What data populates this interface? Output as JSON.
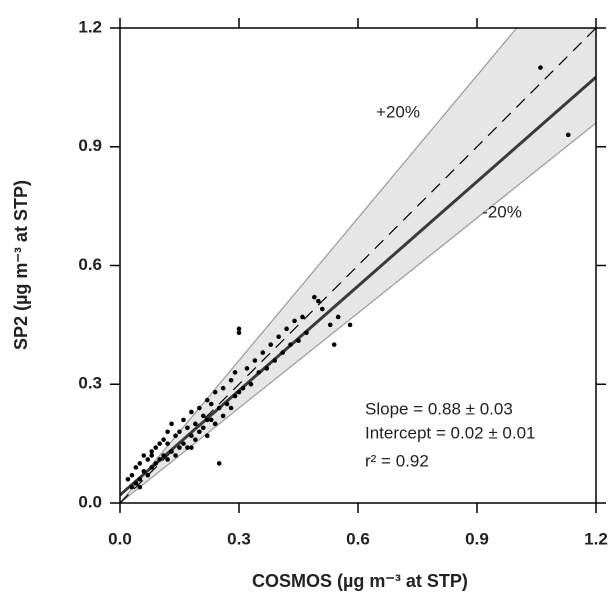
{
  "chart_data": {
    "type": "scatter",
    "x_label": "COSMOS (µg m⁻³ at STP)",
    "y_label": "SP2 (µg m⁻³ at STP)",
    "xlim": [
      0,
      1.2
    ],
    "ylim": [
      0,
      1.2
    ],
    "xticks": [
      {
        "value": 0,
        "label": "0.0"
      },
      0.3,
      0.6,
      0.9,
      1.2
    ],
    "yticks": [
      {
        "value": 0,
        "label": "0.0"
      },
      0.3,
      0.6,
      0.9,
      1.2
    ],
    "color": "#000000",
    "envelope": {
      "color": "#e6e6e6",
      "lines": [
        {
          "label": "+20%",
          "slope": 1.2
        },
        {
          "label": "-20%",
          "slope": 0.8
        }
      ]
    },
    "one_to_one": {
      "slope": 1,
      "style": "dashed"
    },
    "fit": {
      "slope": 0.88,
      "intercept": 0.02,
      "color": "#3a3a3a"
    },
    "annotations": [
      "Slope = 0.88 ± 0.03",
      "Intercept = 0.02 ± 0.01",
      "r² = 0.92"
    ],
    "x": [
      0.02,
      0.03,
      0.03,
      0.04,
      0.04,
      0.05,
      0.05,
      0.06,
      0.06,
      0.07,
      0.07,
      0.08,
      0.08,
      0.09,
      0.09,
      0.1,
      0.1,
      0.11,
      0.11,
      0.12,
      0.12,
      0.13,
      0.13,
      0.14,
      0.14,
      0.15,
      0.15,
      0.16,
      0.16,
      0.17,
      0.17,
      0.18,
      0.18,
      0.19,
      0.19,
      0.2,
      0.2,
      0.21,
      0.21,
      0.22,
      0.22,
      0.23,
      0.23,
      0.24,
      0.24,
      0.25,
      0.25,
      0.26,
      0.26,
      0.27,
      0.28,
      0.28,
      0.29,
      0.29,
      0.3,
      0.3,
      0.3,
      0.31,
      0.32,
      0.33,
      0.34,
      0.35,
      0.36,
      0.37,
      0.38,
      0.39,
      0.4,
      0.41,
      0.42,
      0.43,
      0.44,
      0.45,
      0.46,
      0.47,
      0.49,
      0.5,
      0.51,
      0.53,
      0.54,
      0.55,
      0.58,
      1.06,
      1.13,
      0.05,
      0.08,
      0.12,
      0.18,
      0.22
    ],
    "y": [
      0.06,
      0.04,
      0.07,
      0.05,
      0.09,
      0.06,
      0.1,
      0.08,
      0.12,
      0.07,
      0.11,
      0.09,
      0.13,
      0.1,
      0.14,
      0.11,
      0.15,
      0.12,
      0.16,
      0.11,
      0.15,
      0.13,
      0.2,
      0.12,
      0.17,
      0.14,
      0.18,
      0.15,
      0.21,
      0.14,
      0.19,
      0.17,
      0.23,
      0.16,
      0.2,
      0.18,
      0.24,
      0.19,
      0.22,
      0.17,
      0.26,
      0.21,
      0.25,
      0.2,
      0.28,
      0.1,
      0.24,
      0.22,
      0.29,
      0.25,
      0.24,
      0.31,
      0.27,
      0.33,
      0.44,
      0.43,
      0.28,
      0.29,
      0.34,
      0.3,
      0.36,
      0.33,
      0.38,
      0.34,
      0.4,
      0.36,
      0.42,
      0.38,
      0.44,
      0.4,
      0.46,
      0.41,
      0.47,
      0.43,
      0.52,
      0.51,
      0.49,
      0.45,
      0.4,
      0.47,
      0.45,
      1.1,
      0.93,
      0.04,
      0.12,
      0.18,
      0.14,
      0.21
    ]
  }
}
